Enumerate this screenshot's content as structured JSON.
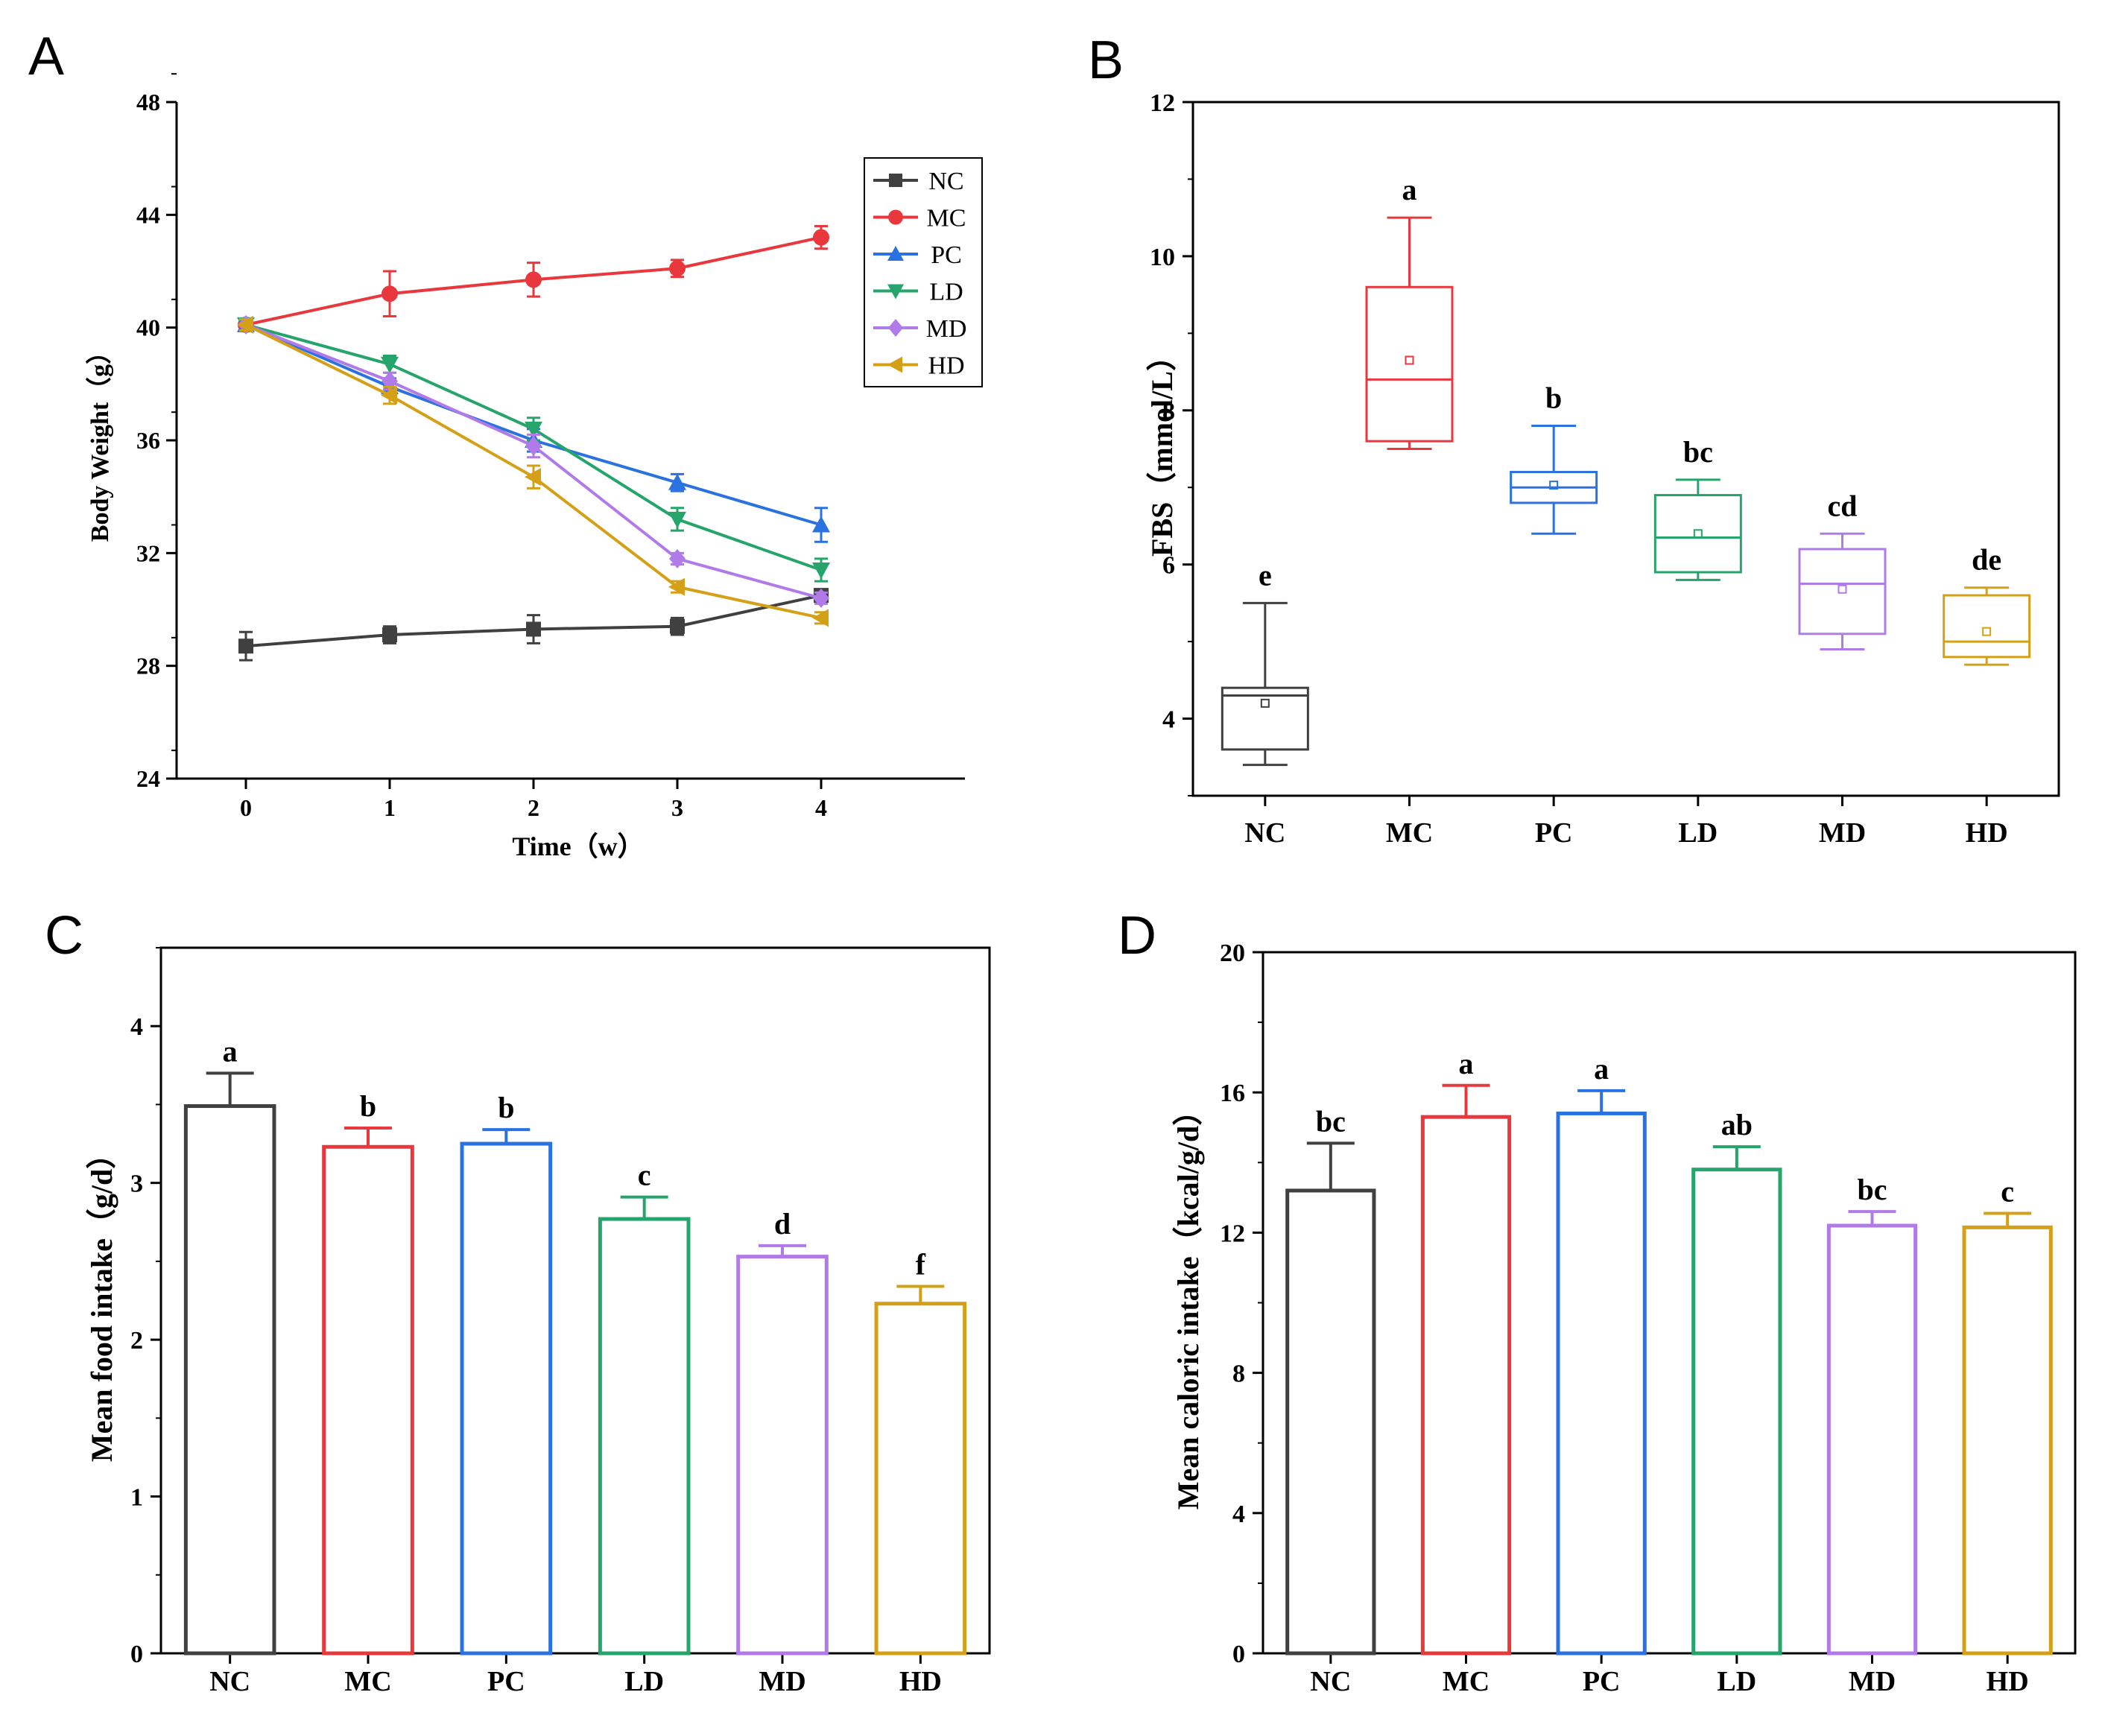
{
  "colors": {
    "NC": "#404040",
    "MC": "#e8383d",
    "PC": "#2a72e0",
    "LD": "#25a56b",
    "MD": "#b07ae8",
    "HD": "#d4a017"
  },
  "groups": [
    "NC",
    "MC",
    "PC",
    "LD",
    "MD",
    "HD"
  ],
  "chart_data": [
    {
      "panel": "A",
      "type": "line",
      "xlabel": "Time（w）",
      "ylabel": "Body Weight（g）",
      "x": [
        0,
        1,
        2,
        3,
        4
      ],
      "xticks": [
        "0",
        "1",
        "2",
        "3",
        "4"
      ],
      "ylim": [
        24,
        48
      ],
      "yticks": [
        "24",
        "28",
        "32",
        "36",
        "40",
        "44",
        "48"
      ],
      "legend": "top-right",
      "series": [
        {
          "name": "NC",
          "marker": "square",
          "values": [
            28.7,
            29.1,
            29.3,
            29.4,
            30.5
          ],
          "err": [
            0.5,
            0.3,
            0.5,
            0.3,
            0.2
          ]
        },
        {
          "name": "MC",
          "marker": "circle",
          "values": [
            40.1,
            41.2,
            41.7,
            42.1,
            43.2
          ],
          "err": [
            0.2,
            0.8,
            0.6,
            0.3,
            0.4
          ]
        },
        {
          "name": "PC",
          "marker": "triangle-up",
          "values": [
            40.1,
            37.9,
            36.0,
            34.5,
            33.0
          ],
          "err": [
            0.2,
            0.3,
            0.4,
            0.3,
            0.6
          ]
        },
        {
          "name": "LD",
          "marker": "triangle-down",
          "values": [
            40.1,
            38.7,
            36.4,
            33.2,
            31.4
          ],
          "err": [
            0.2,
            0.3,
            0.4,
            0.4,
            0.4
          ]
        },
        {
          "name": "MD",
          "marker": "diamond",
          "values": [
            40.1,
            38.1,
            35.8,
            31.8,
            30.4
          ],
          "err": [
            0.2,
            0.3,
            0.4,
            0.2,
            0.2
          ]
        },
        {
          "name": "HD",
          "marker": "triangle-left",
          "values": [
            40.1,
            37.6,
            34.7,
            30.8,
            29.7
          ],
          "err": [
            0.2,
            0.3,
            0.4,
            0.2,
            0.2
          ]
        }
      ]
    },
    {
      "panel": "B",
      "type": "box",
      "ylabel": "FBS（mmol/L）",
      "categories": [
        "NC",
        "MC",
        "PC",
        "LD",
        "MD",
        "HD"
      ],
      "ylim": [
        3,
        12
      ],
      "yticks": [
        "4",
        "6",
        "8",
        "10",
        "12"
      ],
      "boxes": [
        {
          "name": "NC",
          "min": 3.4,
          "q1": 3.6,
          "median": 4.3,
          "q3": 4.4,
          "max": 5.5,
          "mean": 4.2,
          "label": "e"
        },
        {
          "name": "MC",
          "min": 7.5,
          "q1": 7.6,
          "median": 8.4,
          "q3": 9.6,
          "max": 10.5,
          "mean": 8.65,
          "label": "a"
        },
        {
          "name": "PC",
          "min": 6.4,
          "q1": 6.8,
          "median": 7.0,
          "q3": 7.2,
          "max": 7.8,
          "mean": 7.03,
          "label": "b"
        },
        {
          "name": "LD",
          "min": 5.8,
          "q1": 5.9,
          "median": 6.35,
          "q3": 6.9,
          "max": 7.1,
          "mean": 6.4,
          "label": "bc"
        },
        {
          "name": "MD",
          "min": 4.9,
          "q1": 5.1,
          "median": 5.75,
          "q3": 6.2,
          "max": 6.4,
          "mean": 5.68,
          "label": "cd"
        },
        {
          "name": "HD",
          "min": 4.7,
          "q1": 4.8,
          "median": 5.0,
          "q3": 5.6,
          "max": 5.7,
          "mean": 5.13,
          "label": "de"
        }
      ]
    },
    {
      "panel": "C",
      "type": "bar",
      "ylabel": "Mean food intake（g/d）",
      "categories": [
        "NC",
        "MC",
        "PC",
        "LD",
        "MD",
        "HD"
      ],
      "ylim": [
        0,
        4.5
      ],
      "yticks": [
        "0",
        "1",
        "2",
        "3",
        "4"
      ],
      "values": [
        3.49,
        3.23,
        3.25,
        2.77,
        2.53,
        2.23
      ],
      "err": [
        0.21,
        0.12,
        0.09,
        0.14,
        0.07,
        0.11
      ],
      "labels": [
        "a",
        "b",
        "b",
        "c",
        "d",
        "f"
      ]
    },
    {
      "panel": "D",
      "type": "bar",
      "ylabel": "Mean caloric intake（kcal/g/d）",
      "categories": [
        "NC",
        "MC",
        "PC",
        "LD",
        "MD",
        "HD"
      ],
      "ylim": [
        0,
        20
      ],
      "yticks": [
        "0",
        "4",
        "8",
        "12",
        "16",
        "20"
      ],
      "values": [
        13.2,
        15.3,
        15.4,
        13.8,
        12.2,
        12.15
      ],
      "err": [
        1.35,
        0.9,
        0.65,
        0.65,
        0.4,
        0.4
      ],
      "labels": [
        "bc",
        "a",
        "a",
        "ab",
        "bc",
        "c"
      ]
    }
  ]
}
